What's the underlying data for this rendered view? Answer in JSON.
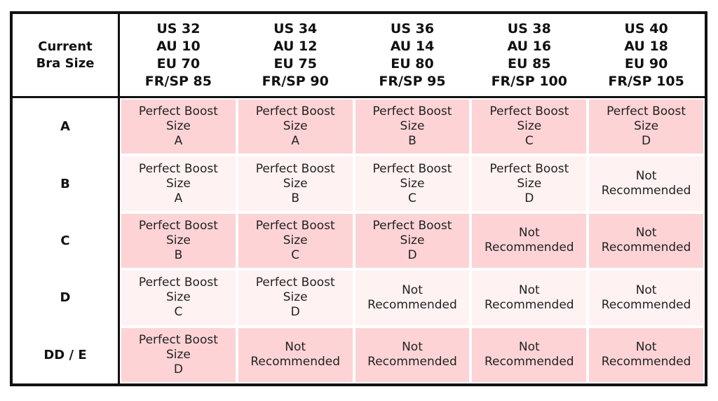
{
  "corner": {
    "line1": "Current",
    "line2": "Bra Size"
  },
  "columns": [
    {
      "us": "US 32",
      "au": "AU 10",
      "eu": "EU 70",
      "frsp": "FR/SP 85"
    },
    {
      "us": "US 34",
      "au": "AU 12",
      "eu": "EU 75",
      "frsp": "FR/SP 90"
    },
    {
      "us": "US 36",
      "au": "AU 14",
      "eu": "EU 80",
      "frsp": "FR/SP 95"
    },
    {
      "us": "US 38",
      "au": "AU 16",
      "eu": "EU 85",
      "frsp": "FR/SP 100"
    },
    {
      "us": "US 40",
      "au": "AU 18",
      "eu": "EU 90",
      "frsp": "FR/SP 105"
    }
  ],
  "rows": [
    {
      "label": "A",
      "cells": [
        {
          "line1": "Perfect Boost",
          "line2": "Size",
          "line3": "A"
        },
        {
          "line1": "Perfect Boost",
          "line2": "Size",
          "line3": "A"
        },
        {
          "line1": "Perfect Boost",
          "line2": "Size",
          "line3": "B"
        },
        {
          "line1": "Perfect Boost",
          "line2": "Size",
          "line3": "C"
        },
        {
          "line1": "Perfect Boost",
          "line2": "Size",
          "line3": "D"
        }
      ]
    },
    {
      "label": "B",
      "cells": [
        {
          "line1": "Perfect Boost",
          "line2": "Size",
          "line3": "A"
        },
        {
          "line1": "Perfect Boost",
          "line2": "Size",
          "line3": "B"
        },
        {
          "line1": "Perfect Boost",
          "line2": "Size",
          "line3": "C"
        },
        {
          "line1": "Perfect Boost",
          "line2": "Size",
          "line3": "D"
        },
        {
          "line1": "Not",
          "line2": "Recommended",
          "line3": ""
        }
      ]
    },
    {
      "label": "C",
      "cells": [
        {
          "line1": "Perfect Boost",
          "line2": "Size",
          "line3": "B"
        },
        {
          "line1": "Perfect Boost",
          "line2": "Size",
          "line3": "C"
        },
        {
          "line1": "Perfect Boost",
          "line2": "Size",
          "line3": "D"
        },
        {
          "line1": "Not",
          "line2": "Recommended",
          "line3": ""
        },
        {
          "line1": "Not",
          "line2": "Recommended",
          "line3": ""
        }
      ]
    },
    {
      "label": "D",
      "cells": [
        {
          "line1": "Perfect Boost",
          "line2": "Size",
          "line3": "C"
        },
        {
          "line1": "Perfect Boost",
          "line2": "Size",
          "line3": "D"
        },
        {
          "line1": "Not",
          "line2": "Recommended",
          "line3": ""
        },
        {
          "line1": "Not",
          "line2": "Recommended",
          "line3": ""
        },
        {
          "line1": "Not",
          "line2": "Recommended",
          "line3": ""
        }
      ]
    },
    {
      "label": "DD / E",
      "cells": [
        {
          "line1": "Perfect Boost",
          "line2": "Size",
          "line3": "D"
        },
        {
          "line1": "Not",
          "line2": "Recommended",
          "line3": ""
        },
        {
          "line1": "Not",
          "line2": "Recommended",
          "line3": ""
        },
        {
          "line1": "Not",
          "line2": "Recommended",
          "line3": ""
        },
        {
          "line1": "Not",
          "line2": "Recommended",
          "line3": ""
        }
      ]
    }
  ],
  "colors": {
    "shaded_row": "#fdd3d6",
    "light_row": "#fff2f2",
    "border": "#111111"
  }
}
